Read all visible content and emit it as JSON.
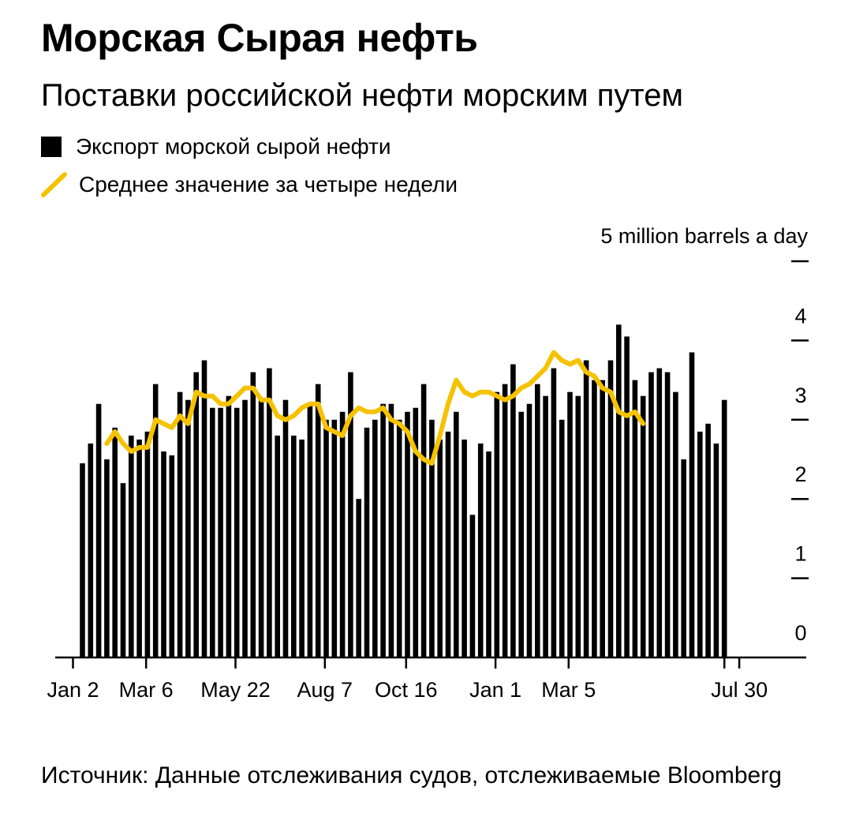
{
  "header": {
    "title": "Морская Сырая нефть",
    "subtitle": "Поставки российской нефти морским путем"
  },
  "legend": {
    "bars_label": "Экспорт морской сырой нефти",
    "line_label": "Среднее значение за четыре недели"
  },
  "footer": {
    "source": "Источник: Данные отслеживания судов, отслеживаемые Bloomberg"
  },
  "colors": {
    "bars": "#000000",
    "line": "#F5C200",
    "axis": "#000000"
  },
  "chart_data": {
    "type": "bar",
    "title": "Поставки российской нефти морским путем",
    "unit_label": "5 million barrels a day",
    "ylim": [
      0,
      5
    ],
    "y_ticks": [
      0,
      1,
      2,
      3,
      4,
      5
    ],
    "y_tick_labels": [
      "0",
      "1",
      "2",
      "3",
      "4",
      ""
    ],
    "x_tick_labels": [
      {
        "label": "Jan 2",
        "index": 0
      },
      {
        "label": "Mar 6",
        "index": 9
      },
      {
        "label": "May 22",
        "index": 20
      },
      {
        "label": "Aug 7",
        "index": 31
      },
      {
        "label": "Oct 16",
        "index": 41
      },
      {
        "label": "Jan 1",
        "index": 52
      },
      {
        "label": "Mar 5",
        "index": 61
      },
      {
        "label": "Jul 30",
        "index": 82
      }
    ],
    "series": [
      {
        "name": "Экспорт морской сырой нефти",
        "kind": "bar",
        "values": [
          2.45,
          2.7,
          3.2,
          2.5,
          2.9,
          2.2,
          2.8,
          2.75,
          2.85,
          3.45,
          2.6,
          2.55,
          3.35,
          3.25,
          3.6,
          3.75,
          3.15,
          3.15,
          3.3,
          3.15,
          3.25,
          3.6,
          3.25,
          3.65,
          2.8,
          3.25,
          2.8,
          2.75,
          3.2,
          3.45,
          3.0,
          3.0,
          3.1,
          3.6,
          2.0,
          2.9,
          3.0,
          3.2,
          3.2,
          3.0,
          3.1,
          3.15,
          3.45,
          3.0,
          2.75,
          2.85,
          3.1,
          2.75,
          1.8,
          2.7,
          2.6,
          3.35,
          3.45,
          3.7,
          3.1,
          3.2,
          3.45,
          3.3,
          3.65,
          3.0,
          3.35,
          3.3,
          3.75,
          3.5,
          3.5,
          3.75,
          4.2,
          4.05,
          3.5,
          3.3,
          3.6,
          3.65,
          3.6,
          3.35,
          2.5,
          3.85,
          2.85,
          2.95,
          2.7,
          3.25
        ]
      },
      {
        "name": "Среднее значение за четыре недели",
        "kind": "line",
        "start_index": 3,
        "values": [
          2.7,
          2.85,
          2.7,
          2.6,
          2.65,
          2.65,
          3.0,
          2.95,
          2.9,
          3.05,
          2.95,
          3.35,
          3.3,
          3.3,
          3.2,
          3.2,
          3.3,
          3.4,
          3.4,
          3.25,
          3.25,
          3.05,
          3.0,
          3.05,
          3.15,
          3.2,
          3.2,
          2.9,
          2.85,
          2.8,
          3.05,
          3.15,
          3.1,
          3.1,
          3.15,
          3.0,
          2.95,
          2.85,
          2.6,
          2.5,
          2.45,
          2.8,
          3.2,
          3.5,
          3.35,
          3.3,
          3.35,
          3.35,
          3.3,
          3.25,
          3.3,
          3.4,
          3.45,
          3.55,
          3.65,
          3.85,
          3.75,
          3.7,
          3.75,
          3.6,
          3.55,
          3.4,
          3.35,
          3.1,
          3.05,
          3.1,
          2.95
        ]
      }
    ]
  }
}
